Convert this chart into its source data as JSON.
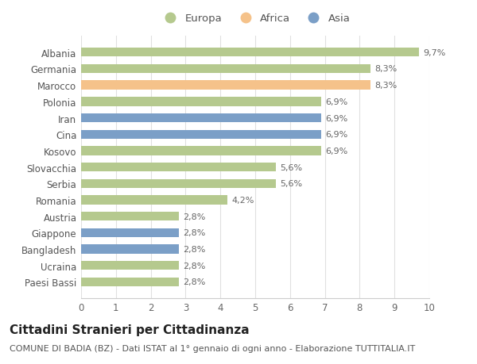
{
  "countries": [
    "Albania",
    "Germania",
    "Marocco",
    "Polonia",
    "Iran",
    "Cina",
    "Kosovo",
    "Slovacchia",
    "Serbia",
    "Romania",
    "Austria",
    "Giappone",
    "Bangladesh",
    "Ucraina",
    "Paesi Bassi"
  ],
  "values": [
    9.7,
    8.3,
    8.3,
    6.9,
    6.9,
    6.9,
    6.9,
    5.6,
    5.6,
    4.2,
    2.8,
    2.8,
    2.8,
    2.8,
    2.8
  ],
  "labels": [
    "9,7%",
    "8,3%",
    "8,3%",
    "6,9%",
    "6,9%",
    "6,9%",
    "6,9%",
    "5,6%",
    "5,6%",
    "4,2%",
    "2,8%",
    "2,8%",
    "2,8%",
    "2,8%",
    "2,8%"
  ],
  "continents": [
    "Europa",
    "Europa",
    "Africa",
    "Europa",
    "Asia",
    "Asia",
    "Europa",
    "Europa",
    "Europa",
    "Europa",
    "Europa",
    "Asia",
    "Asia",
    "Europa",
    "Europa"
  ],
  "colors": {
    "Europa": "#b5c98e",
    "Africa": "#f5c28a",
    "Asia": "#7b9fc7"
  },
  "legend_labels": [
    "Europa",
    "Africa",
    "Asia"
  ],
  "xlim": [
    0,
    10
  ],
  "xticks": [
    0,
    1,
    2,
    3,
    4,
    5,
    6,
    7,
    8,
    9,
    10
  ],
  "title": "Cittadini Stranieri per Cittadinanza",
  "subtitle": "COMUNE DI BADIA (BZ) - Dati ISTAT al 1° gennaio di ogni anno - Elaborazione TUTTITALIA.IT",
  "bg_color": "#ffffff",
  "grid_color": "#e0e0e0",
  "bar_height": 0.55,
  "title_fontsize": 11,
  "subtitle_fontsize": 8,
  "label_fontsize": 8,
  "tick_fontsize": 8.5,
  "legend_fontsize": 9.5
}
